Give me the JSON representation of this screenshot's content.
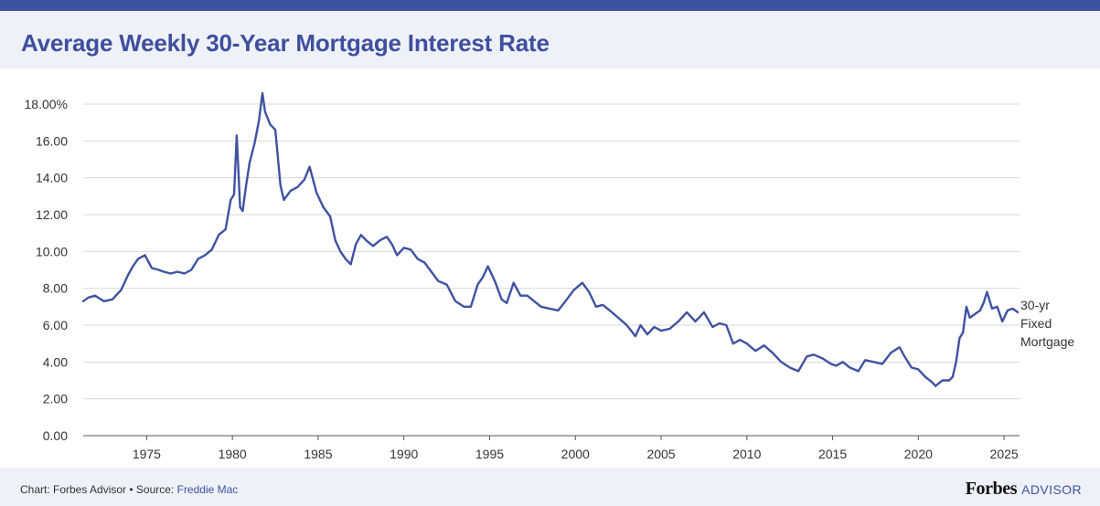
{
  "title": "Average Weekly 30-Year Mortgage Interest Rate",
  "footer": {
    "credit": "Chart: Forbes Advisor • Source: ",
    "source_link": "Freddie Mac",
    "brand_main": "Forbes",
    "brand_sub": "ADVISOR"
  },
  "colors": {
    "line": "#3f52a2",
    "accent": "#3f52a2",
    "grid": "#d9d9d9",
    "header_bg": "#eef1f8"
  },
  "chart_data": {
    "type": "line",
    "title": "Average Weekly 30-Year Mortgage Interest Rate",
    "xlabel": "",
    "ylabel": "",
    "xlim": [
      1971.3,
      2025.9
    ],
    "ylim": [
      0,
      18
    ],
    "grid": true,
    "legend": "right, end of line",
    "y_ticks": [
      {
        "value": 0,
        "label": "0.00"
      },
      {
        "value": 2,
        "label": "2.00"
      },
      {
        "value": 4,
        "label": "4.00"
      },
      {
        "value": 6,
        "label": "6.00"
      },
      {
        "value": 8,
        "label": "8.00"
      },
      {
        "value": 10,
        "label": "10.00"
      },
      {
        "value": 12,
        "label": "12.00"
      },
      {
        "value": 14,
        "label": "14.00"
      },
      {
        "value": 16,
        "label": "16.00"
      },
      {
        "value": 18,
        "label": "18.00%"
      }
    ],
    "x_ticks": [
      {
        "value": 1975,
        "label": "1975"
      },
      {
        "value": 1980,
        "label": "1980"
      },
      {
        "value": 1985,
        "label": "1985"
      },
      {
        "value": 1990,
        "label": "1990"
      },
      {
        "value": 1995,
        "label": "1995"
      },
      {
        "value": 2000,
        "label": "2000"
      },
      {
        "value": 2005,
        "label": "2005"
      },
      {
        "value": 2010,
        "label": "2010"
      },
      {
        "value": 2015,
        "label": "2015"
      },
      {
        "value": 2020,
        "label": "2020"
      },
      {
        "value": 2025,
        "label": "2025"
      }
    ],
    "series": [
      {
        "name": "30-yr Fixed Mortgage",
        "label_lines": [
          "30-yr",
          "Fixed",
          "Mortgage"
        ],
        "x": [
          1971.3,
          1971.6,
          1972.0,
          1972.5,
          1973.0,
          1973.5,
          1973.9,
          1974.2,
          1974.5,
          1974.9,
          1975.3,
          1975.7,
          1976.0,
          1976.4,
          1976.8,
          1977.2,
          1977.6,
          1978.0,
          1978.4,
          1978.8,
          1979.2,
          1979.6,
          1979.9,
          1980.1,
          1980.25,
          1980.45,
          1980.6,
          1980.8,
          1981.0,
          1981.3,
          1981.55,
          1981.75,
          1981.9,
          1982.2,
          1982.5,
          1982.8,
          1983.0,
          1983.4,
          1983.8,
          1984.2,
          1984.5,
          1984.9,
          1985.3,
          1985.7,
          1986.0,
          1986.3,
          1986.6,
          1986.9,
          1987.2,
          1987.5,
          1987.8,
          1988.2,
          1988.6,
          1989.0,
          1989.3,
          1989.6,
          1990.0,
          1990.4,
          1990.8,
          1991.2,
          1991.6,
          1992.0,
          1992.5,
          1993.0,
          1993.5,
          1993.9,
          1994.3,
          1994.6,
          1994.9,
          1995.3,
          1995.7,
          1996.0,
          1996.4,
          1996.8,
          1997.2,
          1997.6,
          1998.0,
          1998.5,
          1999.0,
          1999.5,
          1999.9,
          2000.4,
          2000.8,
          2001.2,
          2001.6,
          2002.0,
          2002.5,
          2003.0,
          2003.5,
          2003.8,
          2004.2,
          2004.6,
          2005.0,
          2005.5,
          2006.0,
          2006.5,
          2007.0,
          2007.5,
          2008.0,
          2008.4,
          2008.8,
          2009.2,
          2009.6,
          2010.0,
          2010.5,
          2011.0,
          2011.5,
          2012.0,
          2012.5,
          2013.0,
          2013.5,
          2013.9,
          2014.4,
          2014.9,
          2015.2,
          2015.6,
          2016.0,
          2016.5,
          2016.9,
          2017.4,
          2017.9,
          2018.4,
          2018.9,
          2019.2,
          2019.6,
          2020.0,
          2020.4,
          2020.8,
          2021.0,
          2021.4,
          2021.8,
          2022.0,
          2022.2,
          2022.4,
          2022.6,
          2022.8,
          2023.0,
          2023.3,
          2023.6,
          2023.8,
          2024.0,
          2024.3,
          2024.6,
          2024.9,
          2025.2,
          2025.5,
          2025.8
        ],
        "values": [
          7.3,
          7.5,
          7.6,
          7.3,
          7.4,
          7.9,
          8.7,
          9.2,
          9.6,
          9.8,
          9.1,
          9.0,
          8.9,
          8.8,
          8.9,
          8.8,
          9.0,
          9.6,
          9.8,
          10.1,
          10.9,
          11.2,
          12.8,
          13.1,
          16.3,
          12.4,
          12.2,
          13.6,
          14.8,
          15.9,
          17.1,
          18.6,
          17.6,
          16.9,
          16.6,
          13.6,
          12.8,
          13.3,
          13.5,
          13.9,
          14.6,
          13.2,
          12.4,
          11.9,
          10.6,
          10.0,
          9.6,
          9.3,
          10.4,
          10.9,
          10.6,
          10.3,
          10.6,
          10.8,
          10.4,
          9.8,
          10.2,
          10.1,
          9.6,
          9.4,
          8.9,
          8.4,
          8.2,
          7.3,
          7.0,
          7.0,
          8.2,
          8.6,
          9.2,
          8.4,
          7.4,
          7.2,
          8.3,
          7.6,
          7.6,
          7.3,
          7.0,
          6.9,
          6.8,
          7.4,
          7.9,
          8.3,
          7.8,
          7.0,
          7.1,
          6.8,
          6.4,
          6.0,
          5.4,
          6.0,
          5.5,
          5.9,
          5.7,
          5.8,
          6.2,
          6.7,
          6.2,
          6.7,
          5.9,
          6.1,
          6.0,
          5.0,
          5.2,
          5.0,
          4.6,
          4.9,
          4.5,
          4.0,
          3.7,
          3.5,
          4.3,
          4.4,
          4.2,
          3.9,
          3.8,
          4.0,
          3.7,
          3.5,
          4.1,
          4.0,
          3.9,
          4.5,
          4.8,
          4.3,
          3.7,
          3.6,
          3.2,
          2.9,
          2.7,
          3.0,
          3.0,
          3.2,
          4.0,
          5.3,
          5.6,
          7.0,
          6.4,
          6.6,
          6.8,
          7.2,
          7.8,
          6.9,
          7.0,
          6.2,
          6.8,
          6.9,
          6.7
        ]
      }
    ]
  }
}
